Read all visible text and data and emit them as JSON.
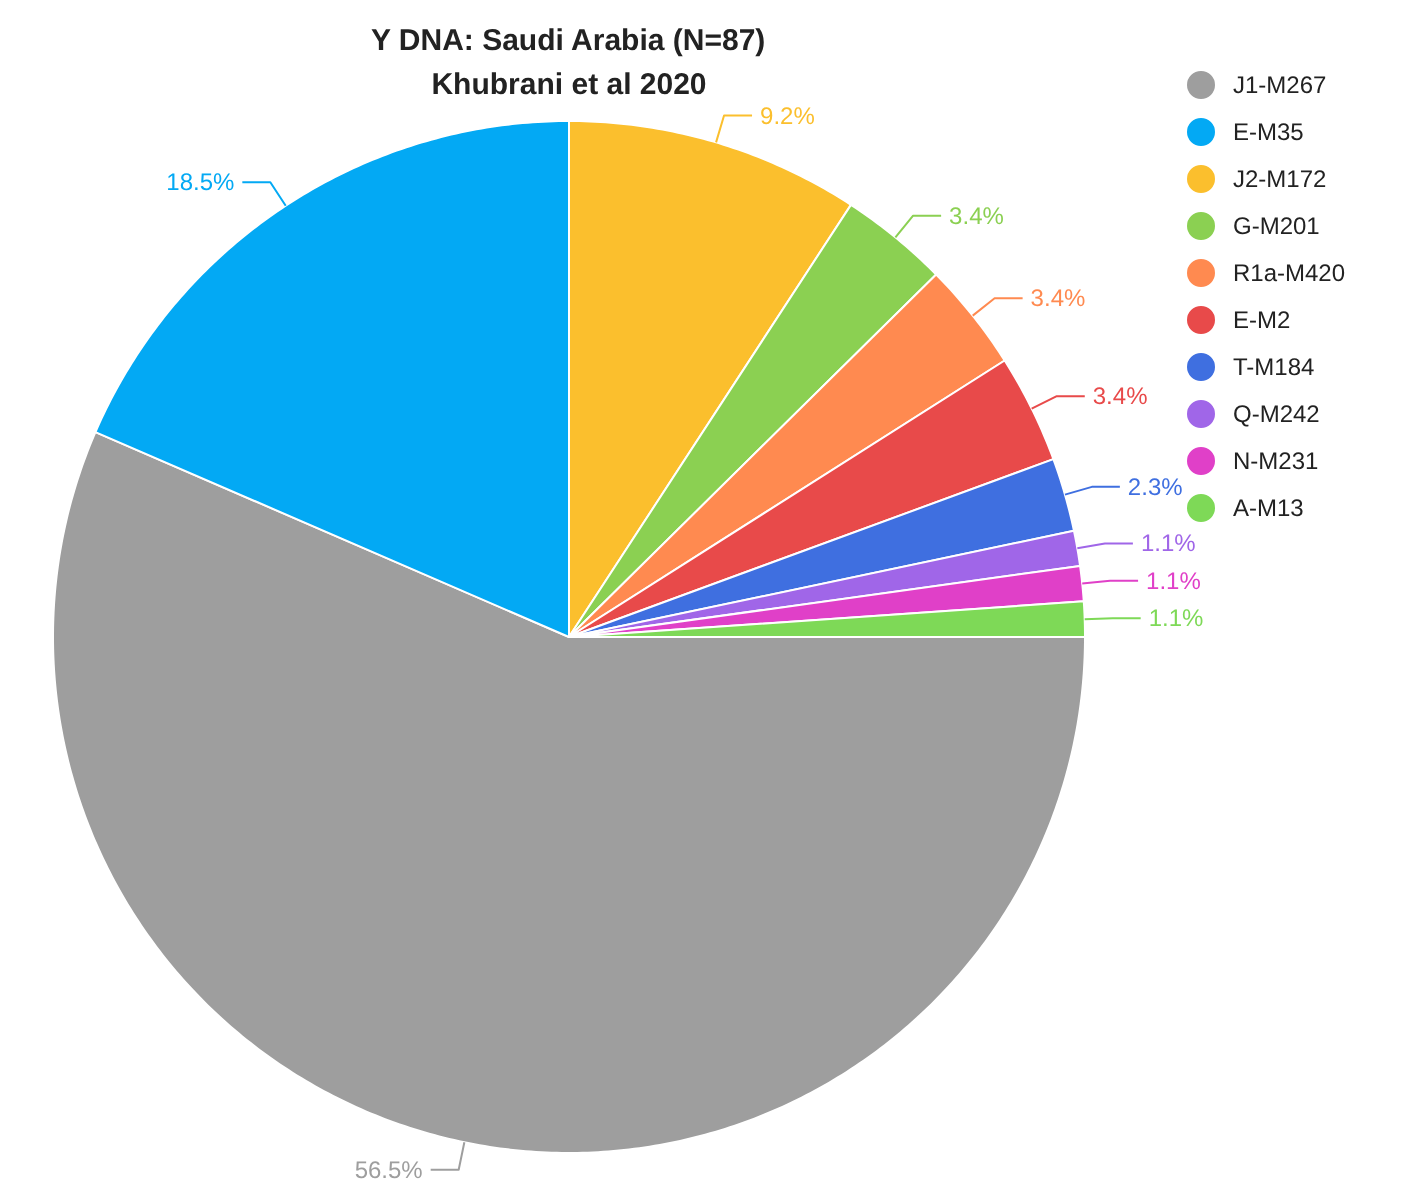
{
  "chart_data": {
    "type": "pie",
    "title": "Y DNA: Saudi Arabia (N=87)",
    "subtitle": "Khubrani et al 2020",
    "categories": [
      "J1-M267",
      "E-M35",
      "J2-M172",
      "G-M201",
      "R1a-M420",
      "E-M2",
      "T-M184",
      "Q-M242",
      "N-M231",
      "A-M13"
    ],
    "values": [
      56.5,
      18.5,
      9.2,
      3.4,
      3.4,
      3.4,
      2.3,
      1.1,
      1.1,
      1.1
    ],
    "value_labels": [
      "56.5%",
      "18.5%",
      "9.2%",
      "3.4%",
      "3.4%",
      "3.4%",
      "2.3%",
      "1.1%",
      "1.1%",
      "1.1%"
    ],
    "colors": [
      "#9e9e9e",
      "#03a9f4",
      "#fbbf2d",
      "#8bd052",
      "#ff8a50",
      "#e84a4a",
      "#3f6fe0",
      "#a066e8",
      "#e040c8",
      "#7ed957"
    ],
    "legend": "top right"
  }
}
